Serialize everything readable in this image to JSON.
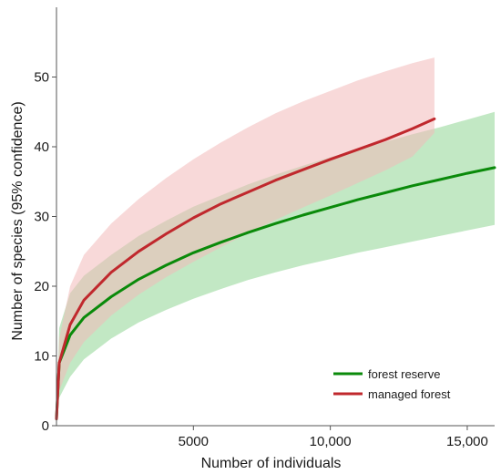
{
  "chart_data": {
    "type": "line",
    "title": "",
    "xlabel": "Number of individuals",
    "ylabel": "Number of species (95% confidence)",
    "xlim": [
      0,
      16000
    ],
    "ylim": [
      0,
      60
    ],
    "x_ticks": [
      5000,
      10000,
      15000
    ],
    "x_tick_labels": [
      "5000",
      "10,000",
      "15,000"
    ],
    "y_ticks": [
      0,
      10,
      20,
      30,
      40,
      50
    ],
    "y_tick_labels": [
      "0",
      "10",
      "20",
      "30",
      "40",
      "50"
    ],
    "grid": false,
    "legend_position": "bottom-right",
    "series": [
      {
        "name": "forest reserve",
        "color": "#0a8a0a",
        "band_color": "#8fd694",
        "x": [
          1,
          100,
          500,
          1000,
          2000,
          3000,
          4000,
          5000,
          6000,
          7000,
          8000,
          9000,
          10000,
          11000,
          12000,
          13000,
          14000,
          15000,
          16000
        ],
        "y": [
          1,
          9,
          13,
          15.5,
          18.5,
          21,
          23,
          24.8,
          26.3,
          27.7,
          29,
          30.2,
          31.3,
          32.4,
          33.4,
          34.4,
          35.3,
          36.2,
          37
        ],
        "lower": [
          1,
          4,
          7,
          9.5,
          12.5,
          14.8,
          16.6,
          18.2,
          19.6,
          20.9,
          22,
          23,
          23.9,
          24.8,
          25.6,
          26.4,
          27.2,
          28,
          28.8
        ],
        "upper": [
          1,
          14,
          19,
          21.5,
          24.5,
          27.2,
          29.4,
          31.4,
          33,
          34.6,
          36,
          37.3,
          38.5,
          39.6,
          40.7,
          41.8,
          42.8,
          43.9,
          45
        ]
      },
      {
        "name": "managed forest",
        "color": "#c0282d",
        "band_color": "#f2b9ba",
        "x": [
          1,
          100,
          500,
          1000,
          2000,
          3000,
          4000,
          5000,
          6000,
          7000,
          8000,
          9000,
          10000,
          11000,
          12000,
          13000,
          13800
        ],
        "y": [
          1,
          9,
          14.5,
          18,
          22,
          25,
          27.5,
          29.8,
          31.8,
          33.5,
          35.2,
          36.7,
          38.2,
          39.6,
          41,
          42.6,
          44
        ],
        "lower": [
          1,
          5,
          9,
          12,
          15.8,
          18.8,
          21.3,
          23.5,
          25.6,
          27.6,
          29.5,
          31.3,
          33,
          34.8,
          36.6,
          38.6,
          42
        ],
        "upper": [
          1,
          12.5,
          20,
          24.5,
          29,
          32.5,
          35.5,
          38.2,
          40.6,
          42.8,
          44.8,
          46.5,
          48,
          49.5,
          50.8,
          52,
          52.8
        ]
      }
    ]
  }
}
